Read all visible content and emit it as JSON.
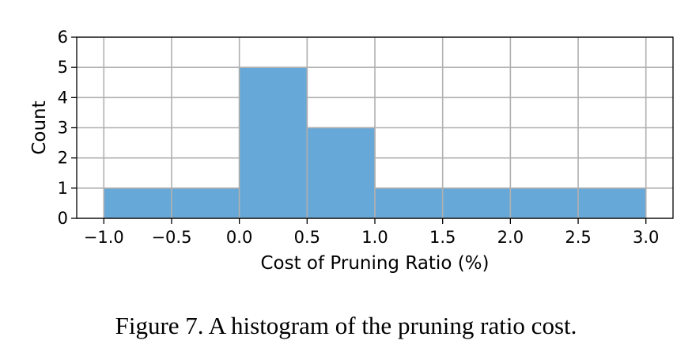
{
  "chart_data": {
    "type": "bar",
    "bins": [
      {
        "x0": -1.0,
        "x1": -0.5,
        "count": 1
      },
      {
        "x0": -0.5,
        "x1": 0.0,
        "count": 1
      },
      {
        "x0": 0.0,
        "x1": 0.5,
        "count": 5
      },
      {
        "x0": 0.5,
        "x1": 1.0,
        "count": 3
      },
      {
        "x0": 1.0,
        "x1": 1.5,
        "count": 1
      },
      {
        "x0": 1.5,
        "x1": 2.0,
        "count": 1
      },
      {
        "x0": 2.0,
        "x1": 2.5,
        "count": 1
      },
      {
        "x0": 2.5,
        "x1": 3.0,
        "count": 1
      }
    ],
    "xlabel": "Cost of Pruning Ratio (%)",
    "ylabel": "Count",
    "xticks": [
      {
        "value": -1.0,
        "label": "−1.0"
      },
      {
        "value": -0.5,
        "label": "−0.5"
      },
      {
        "value": 0.0,
        "label": "0.0"
      },
      {
        "value": 0.5,
        "label": "0.5"
      },
      {
        "value": 1.0,
        "label": "1.0"
      },
      {
        "value": 1.5,
        "label": "1.5"
      },
      {
        "value": 2.0,
        "label": "2.0"
      },
      {
        "value": 2.5,
        "label": "2.5"
      },
      {
        "value": 3.0,
        "label": "3.0"
      }
    ],
    "yticks": [
      {
        "value": 0,
        "label": "0"
      },
      {
        "value": 1,
        "label": "1"
      },
      {
        "value": 2,
        "label": "2"
      },
      {
        "value": 3,
        "label": "3"
      },
      {
        "value": 4,
        "label": "4"
      },
      {
        "value": 5,
        "label": "5"
      },
      {
        "value": 6,
        "label": "6"
      }
    ],
    "xlim": [
      -1.2,
      3.2
    ],
    "ylim": [
      0,
      6
    ],
    "grid": true,
    "bar_color": "#66a8d8",
    "bar_edge_color": "#b0b0b0",
    "grid_color": "#b0b0b0"
  },
  "caption": "Figure 7. A histogram of the pruning ratio cost."
}
